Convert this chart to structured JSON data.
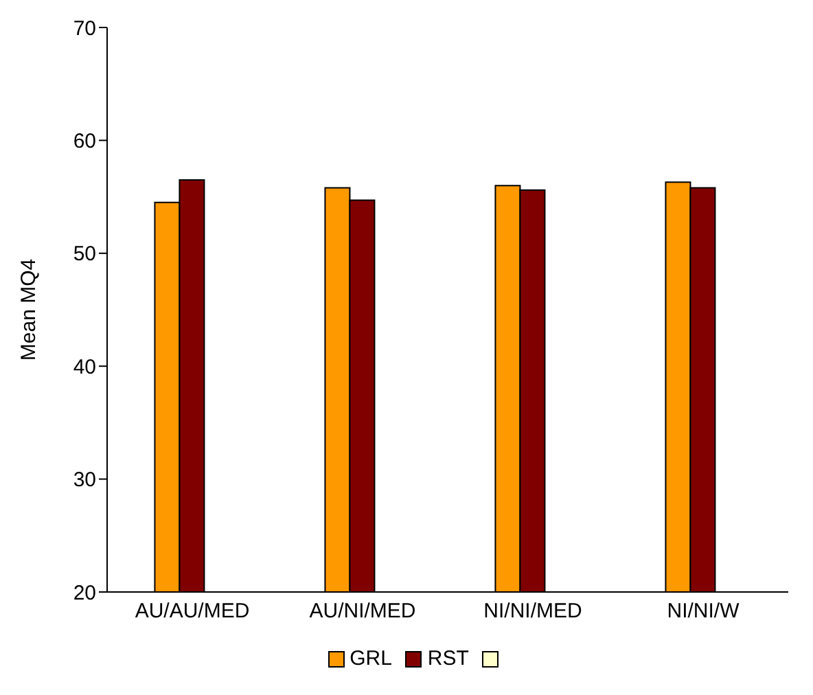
{
  "chart_data": {
    "type": "bar",
    "ylabel": "Mean MQ4",
    "categories": [
      "AU/AU/MED",
      "AU/NI/MED",
      "NI/NI/MED",
      "NI/NI/W"
    ],
    "series": [
      {
        "name": "GRL",
        "color": "#ff9900",
        "values": [
          54.5,
          55.8,
          56.0,
          56.3
        ]
      },
      {
        "name": "RST",
        "color": "#800000",
        "values": [
          56.5,
          54.7,
          55.6,
          55.8
        ]
      },
      {
        "color": "#ffffcc",
        "values": [
          null,
          null,
          null,
          null
        ]
      }
    ],
    "ylim": [
      20,
      70
    ],
    "yticks": [
      20,
      30,
      40,
      50,
      60,
      70
    ],
    "grid": false,
    "legend": "bottom"
  }
}
